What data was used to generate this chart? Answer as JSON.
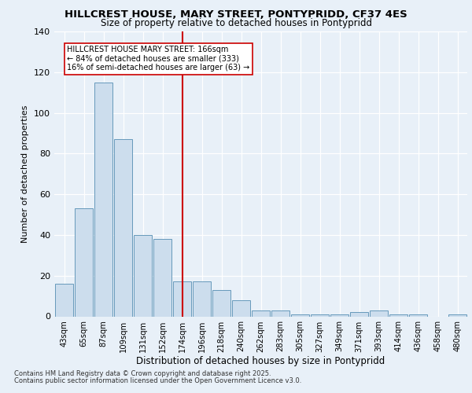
{
  "title1": "HILLCREST HOUSE, MARY STREET, PONTYPRIDD, CF37 4ES",
  "title2": "Size of property relative to detached houses in Pontypridd",
  "xlabel": "Distribution of detached houses by size in Pontypridd",
  "ylabel": "Number of detached properties",
  "categories": [
    "43sqm",
    "65sqm",
    "87sqm",
    "109sqm",
    "131sqm",
    "152sqm",
    "174sqm",
    "196sqm",
    "218sqm",
    "240sqm",
    "262sqm",
    "283sqm",
    "305sqm",
    "327sqm",
    "349sqm",
    "371sqm",
    "393sqm",
    "414sqm",
    "436sqm",
    "458sqm",
    "480sqm"
  ],
  "values": [
    16,
    53,
    115,
    87,
    40,
    38,
    17,
    17,
    13,
    8,
    3,
    3,
    1,
    1,
    1,
    2,
    3,
    1,
    1,
    0,
    1
  ],
  "bar_color": "#ccdded",
  "bar_edge_color": "#6699bb",
  "vline_x": 6,
  "vline_color": "#cc0000",
  "annotation_line0": "HILLCREST HOUSE MARY STREET: 166sqm",
  "annotation_line1": "← 84% of detached houses are smaller (333)",
  "annotation_line2": "16% of semi-detached houses are larger (63) →",
  "annotation_box_color": "#ffffff",
  "annotation_box_edge": "#cc0000",
  "ylim": [
    0,
    140
  ],
  "yticks": [
    0,
    20,
    40,
    60,
    80,
    100,
    120,
    140
  ],
  "footer1": "Contains HM Land Registry data © Crown copyright and database right 2025.",
  "footer2": "Contains public sector information licensed under the Open Government Licence v3.0.",
  "background_color": "#e8f0f8",
  "plot_background": "#e8f0f8"
}
